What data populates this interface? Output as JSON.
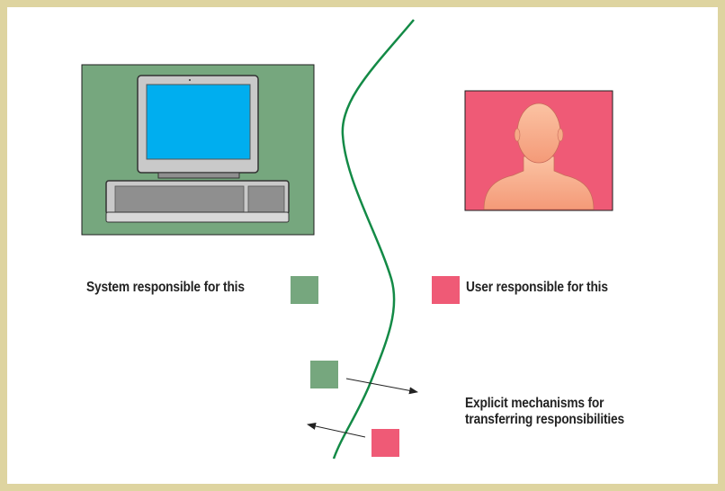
{
  "legend": {
    "system_label": "System responsible for this",
    "user_label": "User responsible for this"
  },
  "transfer": {
    "line1": "Explicit mechanisms for",
    "line2": "transferring responsibilities"
  },
  "colors": {
    "system": "#76a77e",
    "user": "#ef5a76",
    "boundary": "#138a46",
    "screen": "#00aeef",
    "skin": "#f6a987",
    "border": "#ded4a0"
  },
  "icons": {
    "system": "computer-icon",
    "user": "person-silhouette-icon"
  }
}
